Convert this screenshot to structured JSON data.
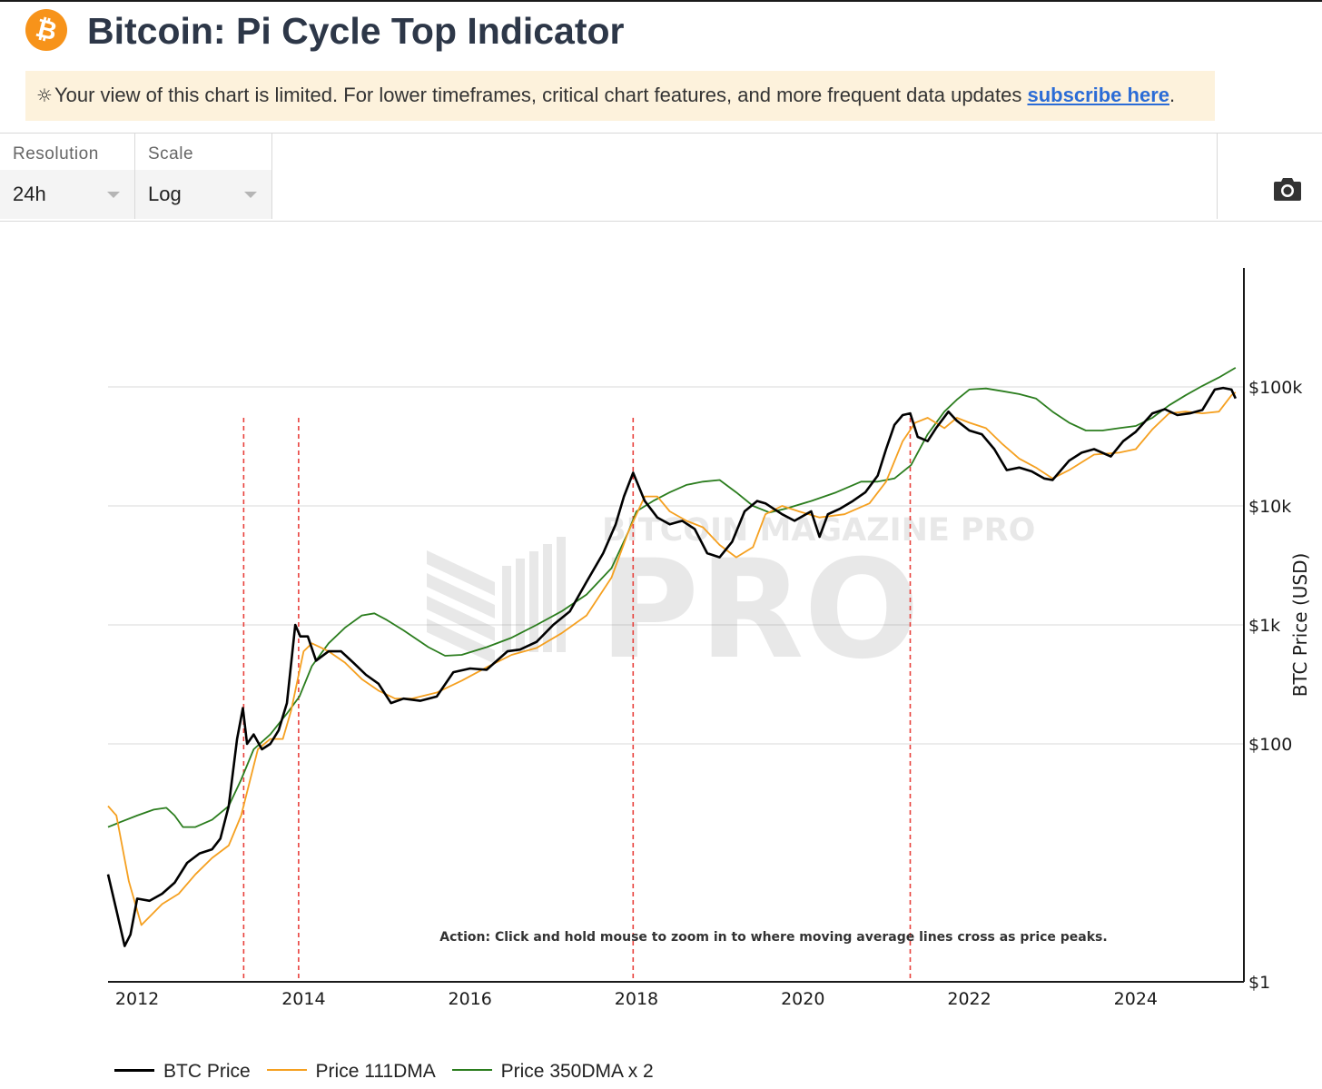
{
  "header": {
    "logo_icon": "bitcoin-icon",
    "logo_symbol": "₿",
    "title": "Bitcoin: Pi Cycle Top Indicator"
  },
  "notice": {
    "icon": "sun-icon",
    "icon_glyph": "☼",
    "text": "Your view of this chart is limited. For lower timeframes, critical chart features, and more frequent data updates ",
    "link_text": "subscribe here",
    "suffix": "."
  },
  "controls": {
    "resolution": {
      "label": "Resolution",
      "value": "24h"
    },
    "scale": {
      "label": "Scale",
      "value": "Log"
    },
    "screenshot_icon": "camera-icon"
  },
  "chart_data": {
    "type": "line",
    "title": "Bitcoin: Pi Cycle Top Indicator",
    "xlabel": "",
    "ylabel": "BTC Price (USD)",
    "y_scale": "log",
    "ylim": [
      1,
      1000000
    ],
    "xlim": [
      2011.65,
      2025.3
    ],
    "x_ticks": [
      2012,
      2014,
      2016,
      2018,
      2020,
      2022,
      2024
    ],
    "x_tick_labels": [
      "2012",
      "2014",
      "2016",
      "2018",
      "2020",
      "2022",
      "2024"
    ],
    "y_ticks": [
      1,
      100,
      1000,
      10000,
      100000
    ],
    "y_tick_labels": [
      "$1",
      "$100",
      "$1k",
      "$10k",
      "$100k"
    ],
    "gridlines": true,
    "legend_position": "bottom-left",
    "watermark": "BITCOIN MAGAZINE PRO",
    "annotation": "Action: Click and hold mouse to zoom in to where moving average lines cross as price peaks.",
    "cross_signals_x": [
      2013.28,
      2013.94,
      2017.96,
      2021.29
    ],
    "series": [
      {
        "name": "BTC Price",
        "color": "#000000",
        "x": [
          2011.65,
          2011.75,
          2011.85,
          2011.92,
          2012.0,
          2012.15,
          2012.3,
          2012.45,
          2012.6,
          2012.75,
          2012.9,
          2013.0,
          2013.1,
          2013.2,
          2013.27,
          2013.32,
          2013.4,
          2013.5,
          2013.6,
          2013.7,
          2013.8,
          2013.9,
          2013.96,
          2014.05,
          2014.15,
          2014.3,
          2014.45,
          2014.6,
          2014.75,
          2014.9,
          2015.05,
          2015.2,
          2015.4,
          2015.6,
          2015.8,
          2016.0,
          2016.2,
          2016.45,
          2016.6,
          2016.8,
          2017.0,
          2017.2,
          2017.4,
          2017.6,
          2017.75,
          2017.85,
          2017.96,
          2018.1,
          2018.25,
          2018.4,
          2018.55,
          2018.7,
          2018.85,
          2019.0,
          2019.15,
          2019.3,
          2019.45,
          2019.55,
          2019.75,
          2019.9,
          2020.1,
          2020.2,
          2020.3,
          2020.45,
          2020.6,
          2020.75,
          2020.9,
          2021.0,
          2021.1,
          2021.2,
          2021.29,
          2021.38,
          2021.5,
          2021.6,
          2021.75,
          2021.85,
          2022.0,
          2022.15,
          2022.3,
          2022.45,
          2022.6,
          2022.75,
          2022.9,
          2023.0,
          2023.2,
          2023.35,
          2023.5,
          2023.7,
          2023.85,
          2024.0,
          2024.2,
          2024.35,
          2024.5,
          2024.65,
          2024.8,
          2024.95,
          2025.05,
          2025.15,
          2025.2
        ],
        "values": [
          8,
          4,
          2,
          2.5,
          5,
          4.8,
          5.5,
          6.8,
          10,
          12,
          13,
          16,
          30,
          110,
          200,
          100,
          120,
          90,
          100,
          130,
          220,
          1000,
          800,
          800,
          500,
          600,
          600,
          480,
          380,
          320,
          220,
          240,
          230,
          250,
          400,
          430,
          420,
          600,
          620,
          720,
          1000,
          1300,
          2300,
          4000,
          7000,
          12000,
          19000,
          11000,
          8000,
          7000,
          7500,
          6400,
          4000,
          3700,
          5000,
          9000,
          11000,
          10500,
          8500,
          7500,
          9000,
          5500,
          8500,
          9500,
          11000,
          13000,
          18000,
          30000,
          48000,
          58000,
          60000,
          38000,
          35000,
          45000,
          62000,
          52000,
          43000,
          40000,
          30000,
          20000,
          21000,
          19500,
          17000,
          16500,
          24000,
          28000,
          30000,
          26000,
          35000,
          42000,
          60000,
          65000,
          58000,
          60000,
          64000,
          95000,
          98000,
          95000,
          80000
        ]
      },
      {
        "name": "Price 111DMA",
        "color": "#f5a020",
        "x": [
          2011.65,
          2011.75,
          2011.9,
          2012.05,
          2012.3,
          2012.5,
          2012.7,
          2012.9,
          2013.1,
          2013.25,
          2013.45,
          2013.6,
          2013.75,
          2013.85,
          2014.0,
          2014.1,
          2014.3,
          2014.5,
          2014.7,
          2014.9,
          2015.1,
          2015.3,
          2015.6,
          2015.9,
          2016.2,
          2016.5,
          2016.8,
          2017.1,
          2017.4,
          2017.7,
          2017.9,
          2018.1,
          2018.25,
          2018.4,
          2018.6,
          2018.8,
          2019.0,
          2019.2,
          2019.4,
          2019.55,
          2019.75,
          2019.95,
          2020.2,
          2020.5,
          2020.8,
          2021.0,
          2021.2,
          2021.35,
          2021.5,
          2021.7,
          2021.85,
          2022.0,
          2022.2,
          2022.4,
          2022.6,
          2022.8,
          2023.0,
          2023.2,
          2023.5,
          2023.8,
          2024.0,
          2024.2,
          2024.4,
          2024.6,
          2024.8,
          2025.0,
          2025.15,
          2025.2
        ],
        "values": [
          30,
          25,
          7,
          3,
          4.5,
          5.5,
          8,
          11,
          14,
          25,
          90,
          110,
          110,
          190,
          600,
          700,
          600,
          480,
          350,
          280,
          240,
          240,
          270,
          340,
          440,
          560,
          640,
          850,
          1200,
          2500,
          6000,
          12000,
          12000,
          9000,
          7500,
          6600,
          4700,
          3700,
          4500,
          8500,
          10000,
          9000,
          8000,
          8500,
          10500,
          16000,
          35000,
          50000,
          55000,
          45000,
          55000,
          50000,
          45000,
          33000,
          25000,
          21000,
          17000,
          20000,
          27000,
          28000,
          30000,
          44000,
          60000,
          62000,
          60000,
          62000,
          85000,
          90000
        ]
      },
      {
        "name": "Price 350DMA x 2",
        "color": "#2b7d1e",
        "x": [
          2011.65,
          2011.8,
          2012.0,
          2012.2,
          2012.35,
          2012.45,
          2012.55,
          2012.7,
          2012.9,
          2013.1,
          2013.25,
          2013.4,
          2013.6,
          2013.8,
          2013.95,
          2014.1,
          2014.3,
          2014.5,
          2014.7,
          2014.85,
          2015.0,
          2015.2,
          2015.5,
          2015.7,
          2015.9,
          2016.2,
          2016.5,
          2016.8,
          2017.1,
          2017.4,
          2017.7,
          2017.9,
          2018.0,
          2018.2,
          2018.4,
          2018.6,
          2018.8,
          2019.0,
          2019.2,
          2019.4,
          2019.6,
          2019.8,
          2020.1,
          2020.4,
          2020.7,
          2020.9,
          2021.1,
          2021.3,
          2021.5,
          2021.7,
          2021.85,
          2022.0,
          2022.2,
          2022.4,
          2022.6,
          2022.8,
          2023.0,
          2023.2,
          2023.4,
          2023.6,
          2023.8,
          2024.0,
          2024.2,
          2024.4,
          2024.6,
          2024.8,
          2025.0,
          2025.2
        ],
        "values": [
          20,
          22,
          25,
          28,
          29,
          25,
          20,
          20,
          23,
          30,
          50,
          90,
          120,
          180,
          250,
          450,
          700,
          950,
          1200,
          1250,
          1100,
          900,
          650,
          550,
          560,
          650,
          780,
          1000,
          1300,
          1800,
          3000,
          6000,
          9000,
          11000,
          13000,
          15000,
          16000,
          16500,
          13000,
          10000,
          8800,
          9500,
          11000,
          13000,
          16000,
          16000,
          17000,
          22000,
          40000,
          62000,
          78000,
          95000,
          97000,
          92000,
          87000,
          80000,
          62000,
          50000,
          43000,
          43000,
          45000,
          47000,
          55000,
          70000,
          85000,
          102000,
          120000,
          145000
        ]
      }
    ]
  },
  "legend": {
    "items": [
      {
        "label": "BTC Price",
        "color": "#000000"
      },
      {
        "label": "Price 111DMA",
        "color": "#f5a020"
      },
      {
        "label": "Price 350DMA x 2",
        "color": "#2b7d1e"
      }
    ]
  }
}
